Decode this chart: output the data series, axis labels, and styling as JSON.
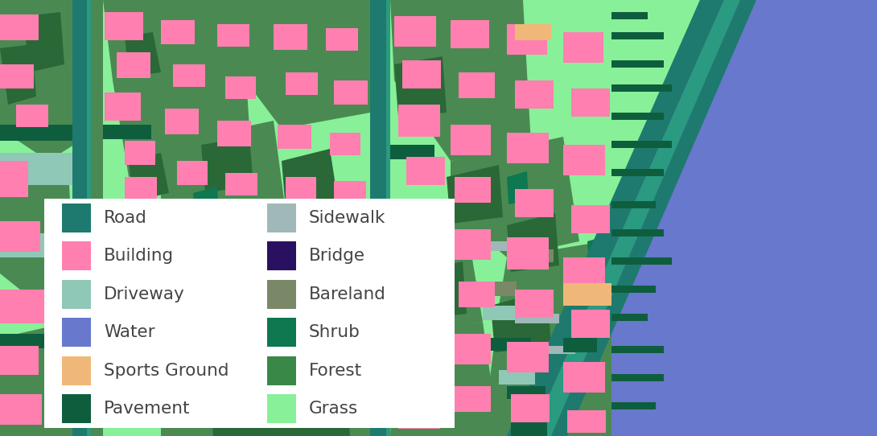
{
  "legend_items_col1": [
    {
      "label": "Road",
      "color": "#1e7a6e"
    },
    {
      "label": "Building",
      "color": "#ff80b0"
    },
    {
      "label": "Driveway",
      "color": "#90c8b8"
    },
    {
      "label": "Water",
      "color": "#6878cc"
    },
    {
      "label": "Sports Ground",
      "color": "#f0b878"
    },
    {
      "label": "Pavement",
      "color": "#0e5e3e"
    }
  ],
  "legend_items_col2": [
    {
      "label": "Sidewalk",
      "color": "#a0b8b8"
    },
    {
      "label": "Bridge",
      "color": "#2a1060"
    },
    {
      "label": "Bareland",
      "color": "#7a8868"
    },
    {
      "label": "Shrub",
      "color": "#0e7850"
    },
    {
      "label": "Forest",
      "color": "#3a8848"
    },
    {
      "label": "Grass",
      "color": "#88f098"
    }
  ],
  "colors": {
    "water_body": "#6878cc",
    "grass_light": "#88f098",
    "forest_med": "#4a8a52",
    "forest_dark": "#2a6838",
    "shrub": "#0e7850",
    "building": "#ff80b0",
    "road": "#1e7a6e",
    "driveway": "#90c8b8",
    "pavement": "#0e5e3e",
    "sidewalk": "#a0b8b8",
    "bareland": "#7a8868",
    "sports": "#f0b878"
  },
  "figsize": [
    10.9,
    5.42
  ],
  "dpi": 100
}
